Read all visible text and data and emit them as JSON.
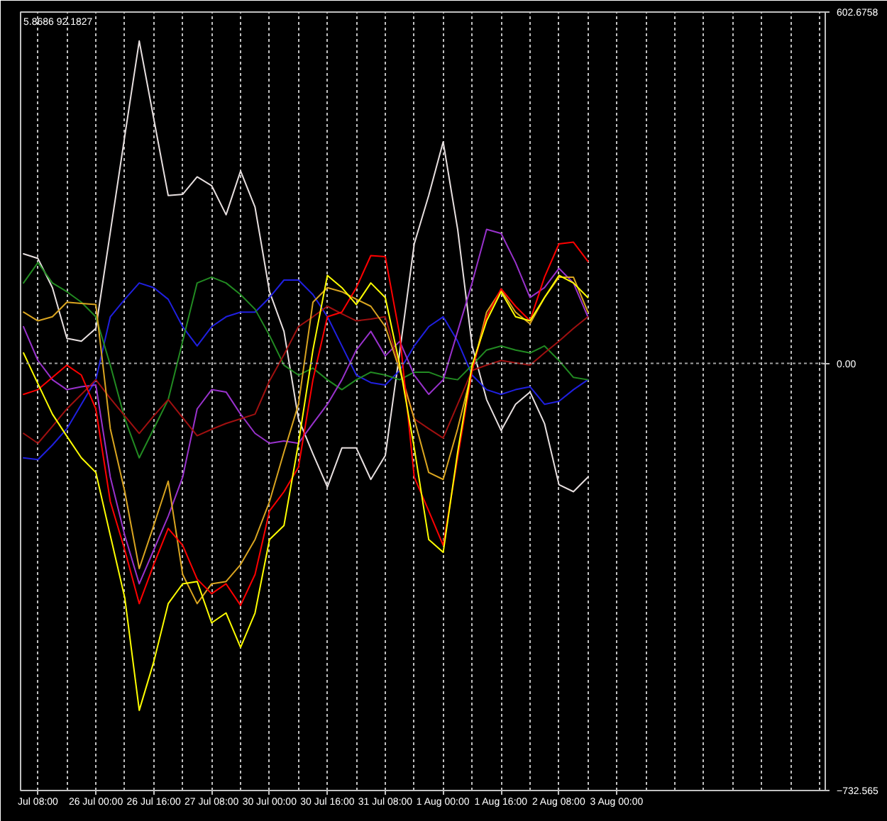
{
  "chart_data": {
    "type": "line",
    "grid": "x",
    "annotations": [
      "5.8686 92.1827"
    ],
    "categories": [
      null,
      "Jul 08:00",
      null,
      null,
      null,
      "26 Jul 00:00",
      null,
      null,
      null,
      "26 Jul 16:00",
      null,
      null,
      null,
      "27 Jul 08:00",
      null,
      null,
      null,
      "30 Jul 00:00",
      null,
      null,
      null,
      "30 Jul 16:00",
      null,
      null,
      null,
      "31 Jul 08:00",
      null,
      null,
      null,
      "1 Aug 00:00",
      null,
      null,
      null,
      "1 Aug 16:00",
      null,
      null,
      null,
      "2 Aug 08:00",
      null,
      null,
      null,
      "3 Aug 00:00",
      null,
      null,
      null,
      null,
      null,
      null,
      null,
      null,
      null,
      null,
      null,
      null,
      null,
      null
    ],
    "ylim": [
      -732.565,
      602.6758
    ],
    "yticks": [
      {
        "value": 602.6758,
        "label": "602.6758"
      },
      {
        "value": 0,
        "label": "0.00"
      },
      -732.565
    ],
    "ref_lines": [
      {
        "axis": "y",
        "value": 0,
        "color": "#a0a0a0",
        "line_style": "dotted"
      }
    ],
    "series": [
      {
        "color": "#e8e0e0",
        "values": [
          188,
          180,
          130,
          43,
          38,
          60,
          225,
          390,
          553,
          420,
          288,
          290,
          320,
          305,
          255,
          330,
          268,
          123,
          55,
          -95,
          -155,
          -212,
          -145,
          -145,
          -199,
          -158,
          20,
          205,
          288,
          380,
          230,
          30,
          -62,
          -115,
          -70,
          -49,
          -103,
          -208,
          -220,
          -195,
          null,
          null,
          null,
          null,
          null,
          null,
          null,
          null,
          null,
          null,
          null,
          null,
          null,
          null,
          null,
          null
        ]
      },
      {
        "color": "#2020e0",
        "values": [
          -162,
          -165,
          -140,
          -112,
          -70,
          -28,
          80,
          110,
          138,
          130,
          110,
          63,
          30,
          63,
          80,
          88,
          88,
          113,
          143,
          143,
          118,
          80,
          30,
          -20,
          -33,
          -37,
          -12,
          30,
          63,
          80,
          38,
          -20,
          -45,
          -53,
          -45,
          -40,
          -70,
          -65,
          -45,
          -28,
          null,
          null,
          null,
          null,
          null,
          null,
          null,
          null,
          null,
          null,
          null,
          null,
          null,
          null,
          null,
          null
        ]
      },
      {
        "color": "#228b22",
        "values": [
          138,
          173,
          138,
          123,
          105,
          80,
          -3,
          -95,
          -162,
          -112,
          -62,
          38,
          138,
          148,
          138,
          118,
          93,
          48,
          -3,
          -20,
          -8,
          -28,
          -45,
          -28,
          -15,
          -20,
          -28,
          -15,
          -15,
          -24,
          -28,
          -3,
          23,
          30,
          23,
          18,
          30,
          5,
          -24,
          -28,
          null,
          null,
          null,
          null,
          null,
          null,
          null,
          null,
          null,
          null,
          null,
          null,
          null,
          null,
          null,
          null
        ]
      },
      {
        "color": "#9932cc",
        "values": [
          63,
          5,
          -28,
          -45,
          -40,
          -37,
          -195,
          -295,
          -378,
          -320,
          -262,
          -195,
          -78,
          -45,
          -49,
          -87,
          -120,
          -137,
          -133,
          -137,
          -103,
          -70,
          -28,
          23,
          55,
          13,
          38,
          -20,
          -53,
          -28,
          55,
          138,
          230,
          223,
          173,
          113,
          130,
          163,
          138,
          80,
          null,
          null,
          null,
          null,
          null,
          null,
          null,
          null,
          null,
          null,
          null,
          null,
          null,
          null,
          null,
          null
        ]
      },
      {
        "color": "#a01010",
        "values": [
          -120,
          -137,
          -108,
          -78,
          -53,
          -28,
          -60,
          -90,
          -120,
          -90,
          -62,
          -93,
          -124,
          -113,
          -103,
          -95,
          -87,
          -30,
          15,
          63,
          80,
          98,
          85,
          73,
          76,
          80,
          -8,
          -95,
          -112,
          -128,
          -70,
          -12,
          -3,
          5,
          1,
          -3,
          18,
          38,
          60,
          80,
          null,
          null,
          null,
          null,
          null,
          null,
          null,
          null,
          null,
          null,
          null,
          null,
          null,
          null,
          null,
          null
        ]
      },
      {
        "color": "#daa520",
        "values": [
          88,
          73,
          80,
          105,
          103,
          101,
          -112,
          -220,
          -352,
          -278,
          -202,
          -362,
          -412,
          -378,
          -374,
          -345,
          -302,
          -237,
          -152,
          -70,
          105,
          130,
          123,
          110,
          98,
          63,
          -12,
          -95,
          -187,
          -199,
          -112,
          -12,
          88,
          126,
          88,
          68,
          113,
          148,
          148,
          88,
          null,
          null,
          null,
          null,
          null,
          null,
          null,
          null,
          null,
          null,
          null,
          null,
          null,
          null,
          null,
          null
        ]
      },
      {
        "color": "#ff0000",
        "values": [
          -53,
          -45,
          -24,
          -3,
          -20,
          -78,
          -237,
          -320,
          -412,
          -345,
          -283,
          -312,
          -370,
          -395,
          -378,
          -415,
          -362,
          -253,
          -220,
          -178,
          -28,
          80,
          88,
          130,
          185,
          183,
          48,
          -195,
          -253,
          -312,
          -162,
          -12,
          80,
          128,
          98,
          73,
          148,
          205,
          208,
          175,
          null,
          null,
          null,
          null,
          null,
          null,
          null,
          null,
          null,
          null,
          null,
          null,
          null,
          null,
          null,
          null
        ]
      },
      {
        "color": "#ffff00",
        "values": [
          18,
          -35,
          -87,
          -125,
          -162,
          -187,
          -295,
          -402,
          -595,
          -512,
          -412,
          -378,
          -374,
          -445,
          -428,
          -487,
          -428,
          -302,
          -278,
          -137,
          23,
          151,
          130,
          101,
          138,
          113,
          -3,
          -145,
          -302,
          -324,
          -152,
          -3,
          73,
          123,
          80,
          73,
          113,
          151,
          138,
          113,
          null,
          null,
          null,
          null,
          null,
          null,
          null,
          null,
          null,
          null,
          null,
          null,
          null,
          null,
          null,
          null
        ]
      }
    ]
  }
}
